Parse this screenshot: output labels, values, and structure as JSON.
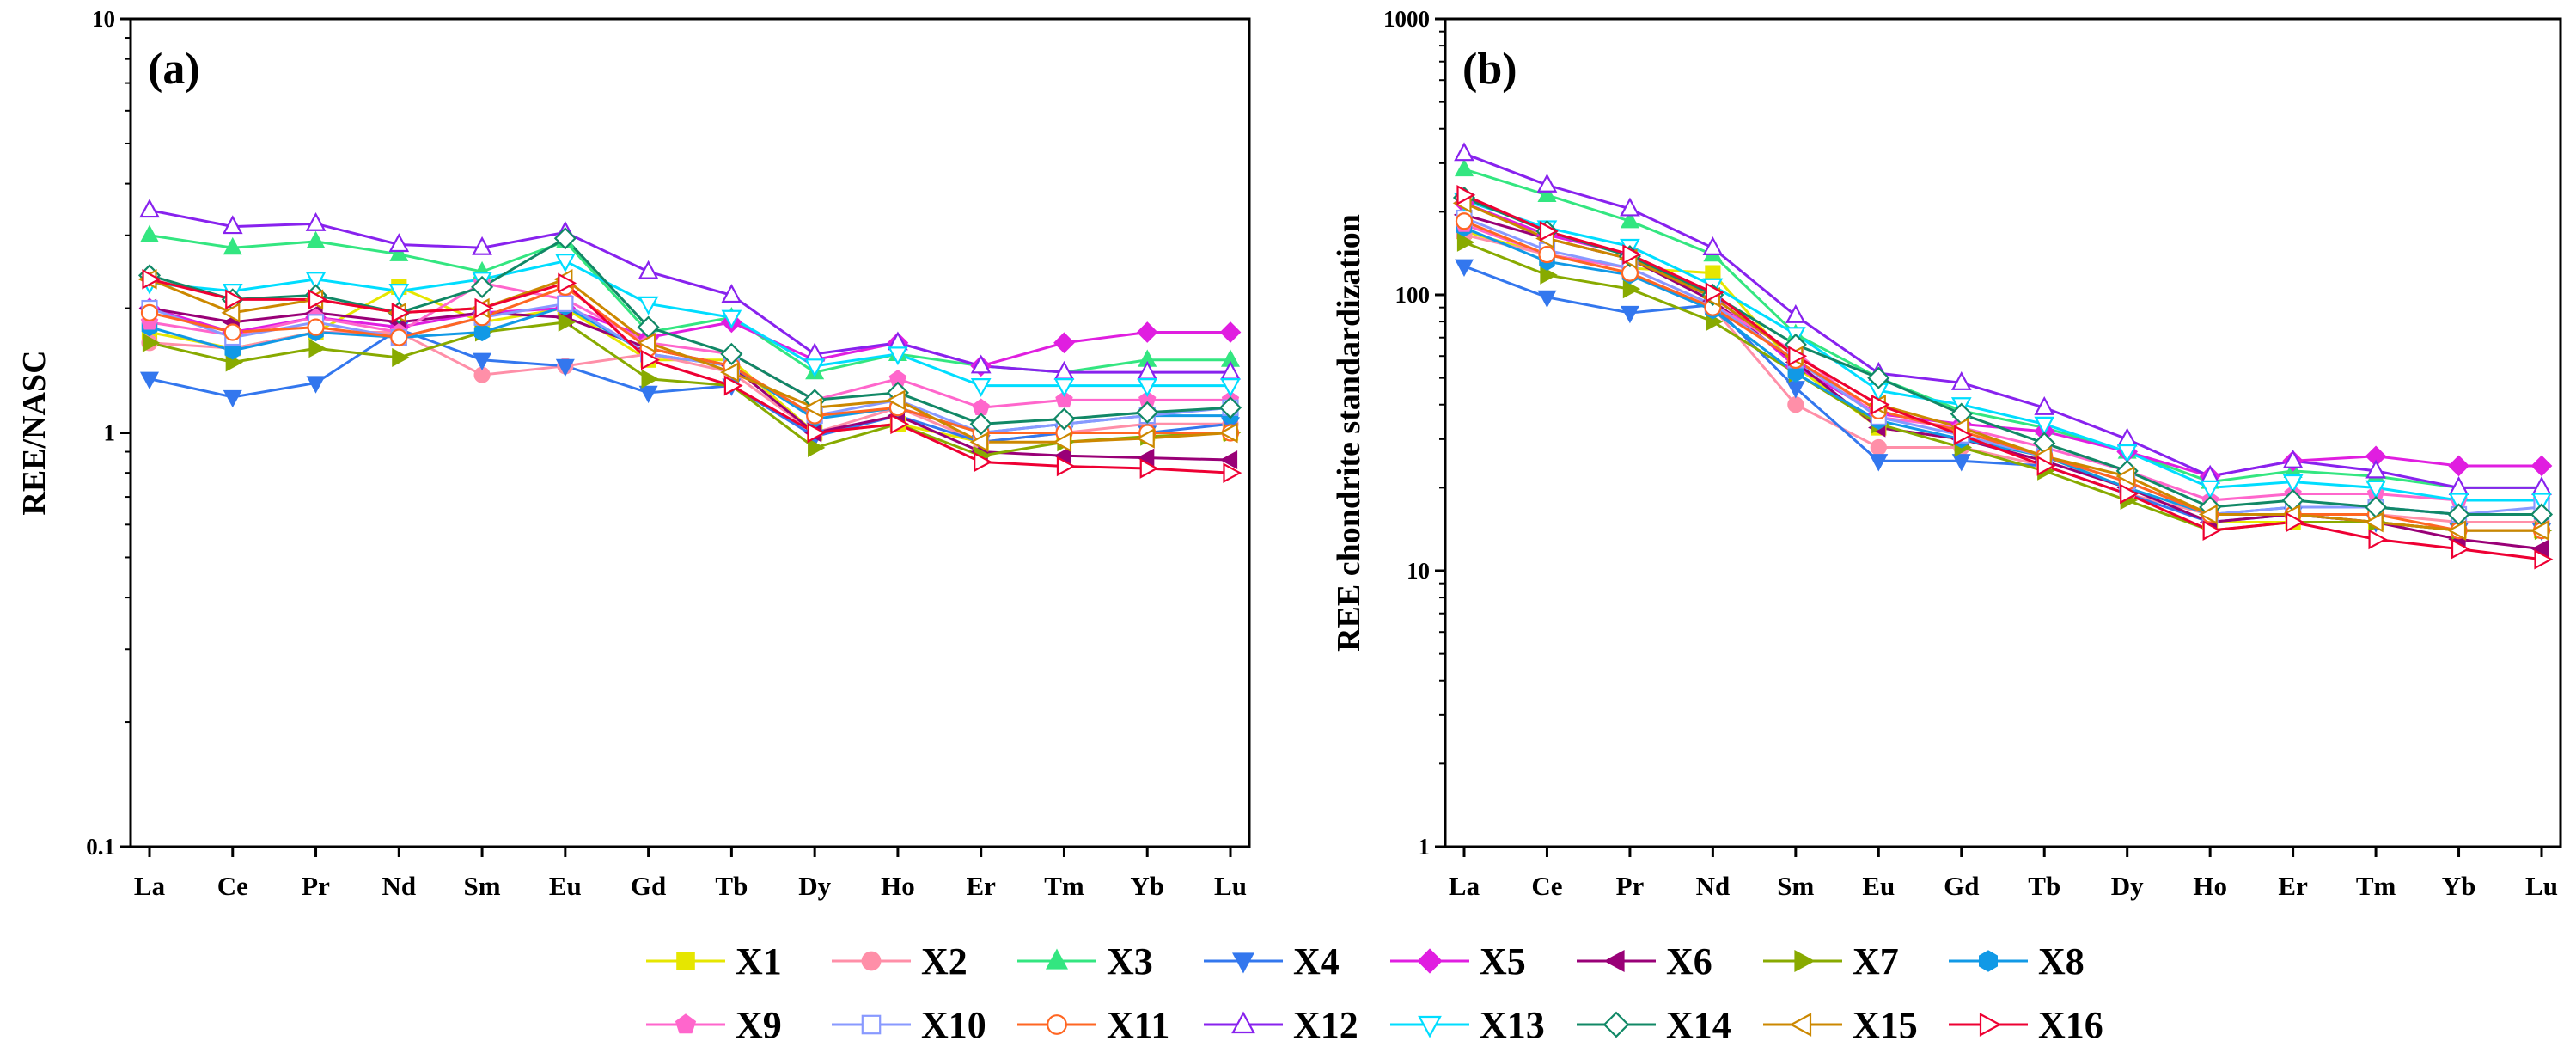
{
  "chart_data": [
    {
      "type": "line",
      "panel_label": "(a)",
      "ylabel": "REE/NASC",
      "yscale": "log",
      "ylim": [
        0.1,
        10
      ],
      "yticks": [
        "0.1",
        "1",
        "10"
      ],
      "categories": [
        "La",
        "Ce",
        "Pr",
        "Nd",
        "Sm",
        "Eu",
        "Gd",
        "Tb",
        "Dy",
        "Ho",
        "Er",
        "Tm",
        "Yb",
        "Lu"
      ],
      "series": [
        {
          "name": "X1",
          "values": [
            1.75,
            1.6,
            1.75,
            2.25,
            1.85,
            2.0,
            1.5,
            1.5,
            1.0,
            1.05,
            0.95,
            1.0,
            1.0,
            1.0
          ]
        },
        {
          "name": "X2",
          "values": [
            1.65,
            1.6,
            1.75,
            1.75,
            1.38,
            1.45,
            1.55,
            1.4,
            1.0,
            1.15,
            0.95,
            1.0,
            1.05,
            1.05
          ]
        },
        {
          "name": "X3",
          "values": [
            3.0,
            2.8,
            2.9,
            2.7,
            2.45,
            2.9,
            1.75,
            1.9,
            1.4,
            1.55,
            1.45,
            1.4,
            1.5,
            1.5
          ]
        },
        {
          "name": "X4",
          "values": [
            1.35,
            1.22,
            1.32,
            1.78,
            1.5,
            1.45,
            1.25,
            1.3,
            0.98,
            1.1,
            0.95,
            1.0,
            1.0,
            1.05
          ]
        },
        {
          "name": "X5",
          "values": [
            2.0,
            1.75,
            1.9,
            1.8,
            1.95,
            2.0,
            1.7,
            1.85,
            1.5,
            1.65,
            1.45,
            1.65,
            1.75,
            1.75
          ]
        },
        {
          "name": "X6",
          "values": [
            2.0,
            1.85,
            1.95,
            1.85,
            1.95,
            1.9,
            1.6,
            1.45,
            1.0,
            1.1,
            0.9,
            0.88,
            0.87,
            0.86
          ]
        },
        {
          "name": "X7",
          "values": [
            1.65,
            1.48,
            1.6,
            1.52,
            1.75,
            1.85,
            1.35,
            1.3,
            0.92,
            1.05,
            0.88,
            0.95,
            0.98,
            1.0
          ]
        },
        {
          "name": "X8",
          "values": [
            1.8,
            1.58,
            1.75,
            1.7,
            1.75,
            2.02,
            1.55,
            1.45,
            1.08,
            1.15,
            1.0,
            1.05,
            1.1,
            1.1
          ]
        },
        {
          "name": "X9",
          "values": [
            1.85,
            1.72,
            1.9,
            1.75,
            2.3,
            2.1,
            1.65,
            1.55,
            1.2,
            1.35,
            1.15,
            1.2,
            1.2,
            1.2
          ]
        },
        {
          "name": "X10",
          "values": [
            2.0,
            1.7,
            1.85,
            1.7,
            1.9,
            2.05,
            1.55,
            1.45,
            1.1,
            1.2,
            1.0,
            1.05,
            1.1,
            1.15
          ]
        },
        {
          "name": "X11",
          "values": [
            1.95,
            1.75,
            1.8,
            1.7,
            1.9,
            2.25,
            1.6,
            1.45,
            1.1,
            1.15,
            1.0,
            1.0,
            1.0,
            1.0
          ]
        },
        {
          "name": "X12",
          "values": [
            3.45,
            3.15,
            3.2,
            2.85,
            2.8,
            3.05,
            2.45,
            2.15,
            1.55,
            1.65,
            1.45,
            1.4,
            1.4,
            1.4
          ]
        },
        {
          "name": "X13",
          "values": [
            2.3,
            2.2,
            2.35,
            2.2,
            2.35,
            2.6,
            2.05,
            1.9,
            1.45,
            1.55,
            1.3,
            1.3,
            1.3,
            1.3
          ]
        },
        {
          "name": "X14",
          "values": [
            2.4,
            2.1,
            2.15,
            1.95,
            2.25,
            2.95,
            1.8,
            1.55,
            1.2,
            1.25,
            1.05,
            1.08,
            1.12,
            1.15
          ]
        },
        {
          "name": "X15",
          "values": [
            2.35,
            1.95,
            2.1,
            1.95,
            2.0,
            2.35,
            1.65,
            1.4,
            1.15,
            1.2,
            0.95,
            0.95,
            0.97,
            1.0
          ]
        },
        {
          "name": "X16",
          "values": [
            2.35,
            2.1,
            2.1,
            1.95,
            2.0,
            2.3,
            1.5,
            1.3,
            1.0,
            1.05,
            0.85,
            0.83,
            0.82,
            0.8
          ]
        }
      ]
    },
    {
      "type": "line",
      "panel_label": "(b)",
      "ylabel": "REE chondrite standardization",
      "yscale": "log",
      "ylim": [
        1,
        1000
      ],
      "yticks": [
        "1",
        "10",
        "100",
        "1000"
      ],
      "categories": [
        "La",
        "Ce",
        "Pr",
        "Nd",
        "Sm",
        "Eu",
        "Gd",
        "Tb",
        "Dy",
        "Ho",
        "Er",
        "Tm",
        "Yb",
        "Lu"
      ],
      "series": [
        {
          "name": "X1",
          "values": [
            170,
            140,
            125,
            120,
            55,
            33,
            30,
            26,
            20,
            15,
            15,
            15,
            14,
            14
          ]
        },
        {
          "name": "X2",
          "values": [
            165,
            140,
            120,
            90,
            40,
            28,
            28,
            24,
            19,
            16,
            16,
            16,
            15,
            15
          ]
        },
        {
          "name": "X3",
          "values": [
            285,
            230,
            185,
            140,
            72,
            50,
            38,
            33,
            27,
            21,
            23,
            22,
            20,
            20
          ]
        },
        {
          "name": "X4",
          "values": [
            127,
            98,
            86,
            92,
            46,
            25,
            25,
            24,
            19,
            15,
            16,
            15,
            14,
            14
          ]
        },
        {
          "name": "X5",
          "values": [
            215,
            165,
            140,
            100,
            55,
            37,
            34,
            32,
            27,
            22,
            25,
            26,
            24,
            24
          ]
        },
        {
          "name": "X6",
          "values": [
            195,
            160,
            135,
            95,
            57,
            33,
            30,
            25,
            20,
            15,
            16,
            15,
            13,
            12
          ]
        },
        {
          "name": "X7",
          "values": [
            155,
            118,
            105,
            80,
            52,
            34,
            28,
            23,
            18,
            14,
            15,
            15,
            14,
            14
          ]
        },
        {
          "name": "X8",
          "values": [
            175,
            132,
            118,
            88,
            52,
            35,
            30,
            26,
            20,
            16,
            17,
            17,
            16,
            16
          ]
        },
        {
          "name": "X9",
          "values": [
            180,
            140,
            125,
            92,
            62,
            36,
            33,
            28,
            23,
            18,
            19,
            19,
            18,
            18
          ]
        },
        {
          "name": "X10",
          "values": [
            190,
            145,
            125,
            92,
            58,
            36,
            31,
            26,
            21,
            16,
            17,
            17,
            16,
            17
          ]
        },
        {
          "name": "X11",
          "values": [
            185,
            140,
            120,
            90,
            58,
            38,
            32,
            26,
            21,
            16,
            16,
            16,
            14,
            14
          ]
        },
        {
          "name": "X12",
          "values": [
            325,
            250,
            205,
            148,
            84,
            52,
            48,
            39,
            30,
            22,
            25,
            23,
            20,
            20
          ]
        },
        {
          "name": "X13",
          "values": [
            220,
            175,
            150,
            108,
            72,
            45,
            40,
            34,
            27,
            20,
            21,
            20,
            18,
            18
          ]
        },
        {
          "name": "X14",
          "values": [
            225,
            170,
            138,
            100,
            66,
            50,
            37,
            29,
            23,
            17,
            18,
            17,
            16,
            16
          ]
        },
        {
          "name": "X15",
          "values": [
            215,
            160,
            135,
            98,
            60,
            40,
            33,
            26,
            22,
            16,
            16,
            15,
            14,
            14
          ]
        },
        {
          "name": "X16",
          "values": [
            230,
            170,
            140,
            102,
            60,
            40,
            31,
            24,
            19,
            14,
            15,
            13,
            12,
            11
          ]
        }
      ]
    }
  ],
  "legend": {
    "items": [
      {
        "name": "X1",
        "color": "#e6e600",
        "marker": "square"
      },
      {
        "name": "X2",
        "color": "#ff8fa8",
        "marker": "circle"
      },
      {
        "name": "X3",
        "color": "#33e680",
        "marker": "triangle-up"
      },
      {
        "name": "X4",
        "color": "#3377ee",
        "marker": "triangle-down"
      },
      {
        "name": "X5",
        "color": "#e01ee0",
        "marker": "diamond"
      },
      {
        "name": "X6",
        "color": "#990077",
        "marker": "triangle-left"
      },
      {
        "name": "X7",
        "color": "#88aa00",
        "marker": "triangle-right"
      },
      {
        "name": "X8",
        "color": "#1199e6",
        "marker": "hexagon"
      },
      {
        "name": "X9",
        "color": "#ff66cc",
        "marker": "pentagon"
      },
      {
        "name": "X10",
        "color": "#8899ff",
        "marker": "square-open"
      },
      {
        "name": "X11",
        "color": "#ff6622",
        "marker": "circle-open"
      },
      {
        "name": "X12",
        "color": "#8822ee",
        "marker": "triangle-up-open"
      },
      {
        "name": "X13",
        "color": "#00ddff",
        "marker": "triangle-down-open"
      },
      {
        "name": "X14",
        "color": "#118866",
        "marker": "diamond-open"
      },
      {
        "name": "X15",
        "color": "#cc8800",
        "marker": "triangle-left-open"
      },
      {
        "name": "X16",
        "color": "#ee0033",
        "marker": "triangle-right-open"
      }
    ]
  }
}
